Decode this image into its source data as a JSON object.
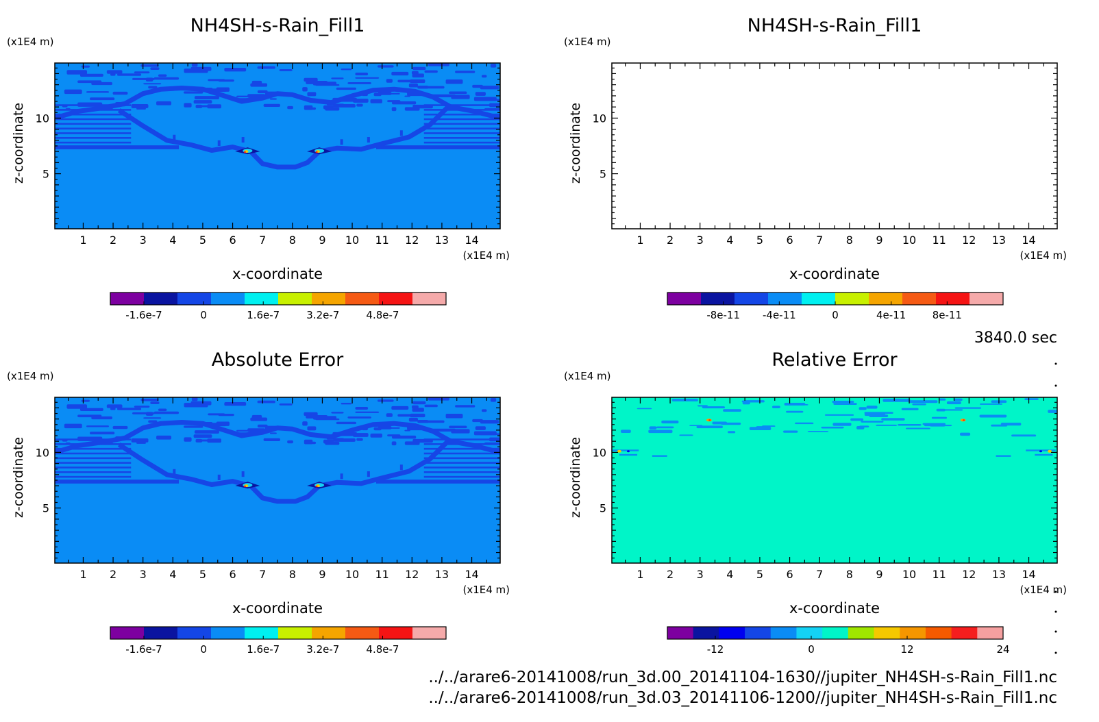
{
  "time_label": "3840.0 sec",
  "file_paths": [
    "../../arare6-20141008/run_3d.00_20141104-1630//jupiter_NH4SH-s-Rain_Fill1.nc",
    "../../arare6-20141008/run_3d.03_20141106-1200//jupiter_NH4SH-s-Rain_Fill1.nc"
  ],
  "colors": {
    "fill_light_blue": "#0a8cf5",
    "contour_blue": "#1646e6",
    "fill_cyan_green": "#00f5c8",
    "palette_13": [
      "#7d00a0",
      "#0a14a0",
      "#0000f0",
      "#1446e6",
      "#0a8cf5",
      "#14d2f5",
      "#00f5c8",
      "#a0e600",
      "#f5c800",
      "#f59600",
      "#f55a00",
      "#f51e1e",
      "#f5a0a0"
    ],
    "palette_10": [
      "#7d00a0",
      "#0a14a0",
      "#1446e6",
      "#0a8cf5",
      "#00f0f0",
      "#c8f000",
      "#f5a500",
      "#f55a14",
      "#f51414",
      "#f5aaaa"
    ]
  },
  "chart_data": [
    {
      "type": "heatmap",
      "title": "NH4SH-s-Rain_Fill1",
      "xlabel": "x-coordinate",
      "ylabel": "z-coordinate",
      "x_unit": "(x1E4 m)",
      "y_unit": "(x1E4 m)",
      "xlim": [
        0.05,
        14.95
      ],
      "ylim": [
        0.05,
        14.95
      ],
      "xticks": [
        "1",
        "2",
        "3",
        "4",
        "5",
        "6",
        "7",
        "8",
        "9",
        "10",
        "11",
        "12",
        "13",
        "14"
      ],
      "yticks": [
        "5",
        "10"
      ],
      "field": "mostly near 0; thin contour band along a cloud-shaped structure 6.5-13 x1E4 m altitude; horizontal banding above 7.3; small peaks near x=6.5 and x=8.9 at z≈7",
      "colorbar": {
        "labels": [
          "-1.6e-7",
          "0",
          "1.6e-7",
          "3.2e-7",
          "4.8e-7"
        ],
        "values": [
          -1.6e-07,
          0,
          1.6e-07,
          3.2e-07,
          4.8e-07
        ],
        "range": [
          -2.5e-07,
          6.5e-07
        ],
        "ncolors": 10
      }
    },
    {
      "type": "heatmap",
      "title": "NH4SH-s-Rain_Fill1",
      "xlabel": "x-coordinate",
      "ylabel": "z-coordinate",
      "x_unit": "(x1E4 m)",
      "y_unit": "(x1E4 m)",
      "xlim": [
        0.05,
        14.95
      ],
      "ylim": [
        0.05,
        14.95
      ],
      "xticks": [
        "1",
        "2",
        "3",
        "4",
        "5",
        "6",
        "7",
        "8",
        "9",
        "10",
        "11",
        "12",
        "13",
        "14"
      ],
      "yticks": [
        "5",
        "10"
      ],
      "field": "empty (no data drawn)",
      "colorbar": {
        "labels": [
          "-8e-11",
          "-4e-11",
          "0",
          "4e-11",
          "8e-11"
        ],
        "values": [
          -8e-11,
          -4e-11,
          0,
          4e-11,
          8e-11
        ],
        "range": [
          -1.2e-10,
          1.2e-10
        ],
        "ncolors": 10
      }
    },
    {
      "type": "heatmap",
      "title": "Absolute Error",
      "xlabel": "x-coordinate",
      "ylabel": "z-coordinate",
      "x_unit": "(x1E4 m)",
      "y_unit": "(x1E4 m)",
      "xlim": [
        0.05,
        14.95
      ],
      "ylim": [
        0.05,
        14.95
      ],
      "xticks": [
        "1",
        "2",
        "3",
        "4",
        "5",
        "6",
        "7",
        "8",
        "9",
        "10",
        "11",
        "12",
        "13",
        "14"
      ],
      "yticks": [
        "5",
        "10"
      ],
      "field": "same pattern as top-left panel",
      "colorbar": {
        "labels": [
          "-1.6e-7",
          "0",
          "1.6e-7",
          "3.2e-7",
          "4.8e-7"
        ],
        "values": [
          -1.6e-07,
          0,
          1.6e-07,
          3.2e-07,
          4.8e-07
        ],
        "range": [
          -2.5e-07,
          6.5e-07
        ],
        "ncolors": 10
      }
    },
    {
      "type": "heatmap",
      "title": "Relative Error",
      "xlabel": "x-coordinate",
      "ylabel": "z-coordinate",
      "x_unit": "(x1E4 m)",
      "y_unit": "(x1E4 m)",
      "xlim": [
        0.05,
        14.95
      ],
      "ylim": [
        0.05,
        14.95
      ],
      "xticks": [
        "1",
        "2",
        "3",
        "4",
        "5",
        "6",
        "7",
        "8",
        "9",
        "10",
        "11",
        "12",
        "13",
        "14"
      ],
      "yticks": [
        "5",
        "10"
      ],
      "field": "uniform near 0 (cyan-green); scattered light-blue patches above ~10; a few small red/yellow spots near x=3.3,z=12.9 and x=11.8,z=12.9",
      "colorbar": {
        "labels": [
          "-12",
          "0",
          "12",
          "24"
        ],
        "values": [
          -12,
          0,
          12,
          24
        ],
        "range": [
          -18,
          24
        ],
        "ncolors": 13
      }
    }
  ]
}
